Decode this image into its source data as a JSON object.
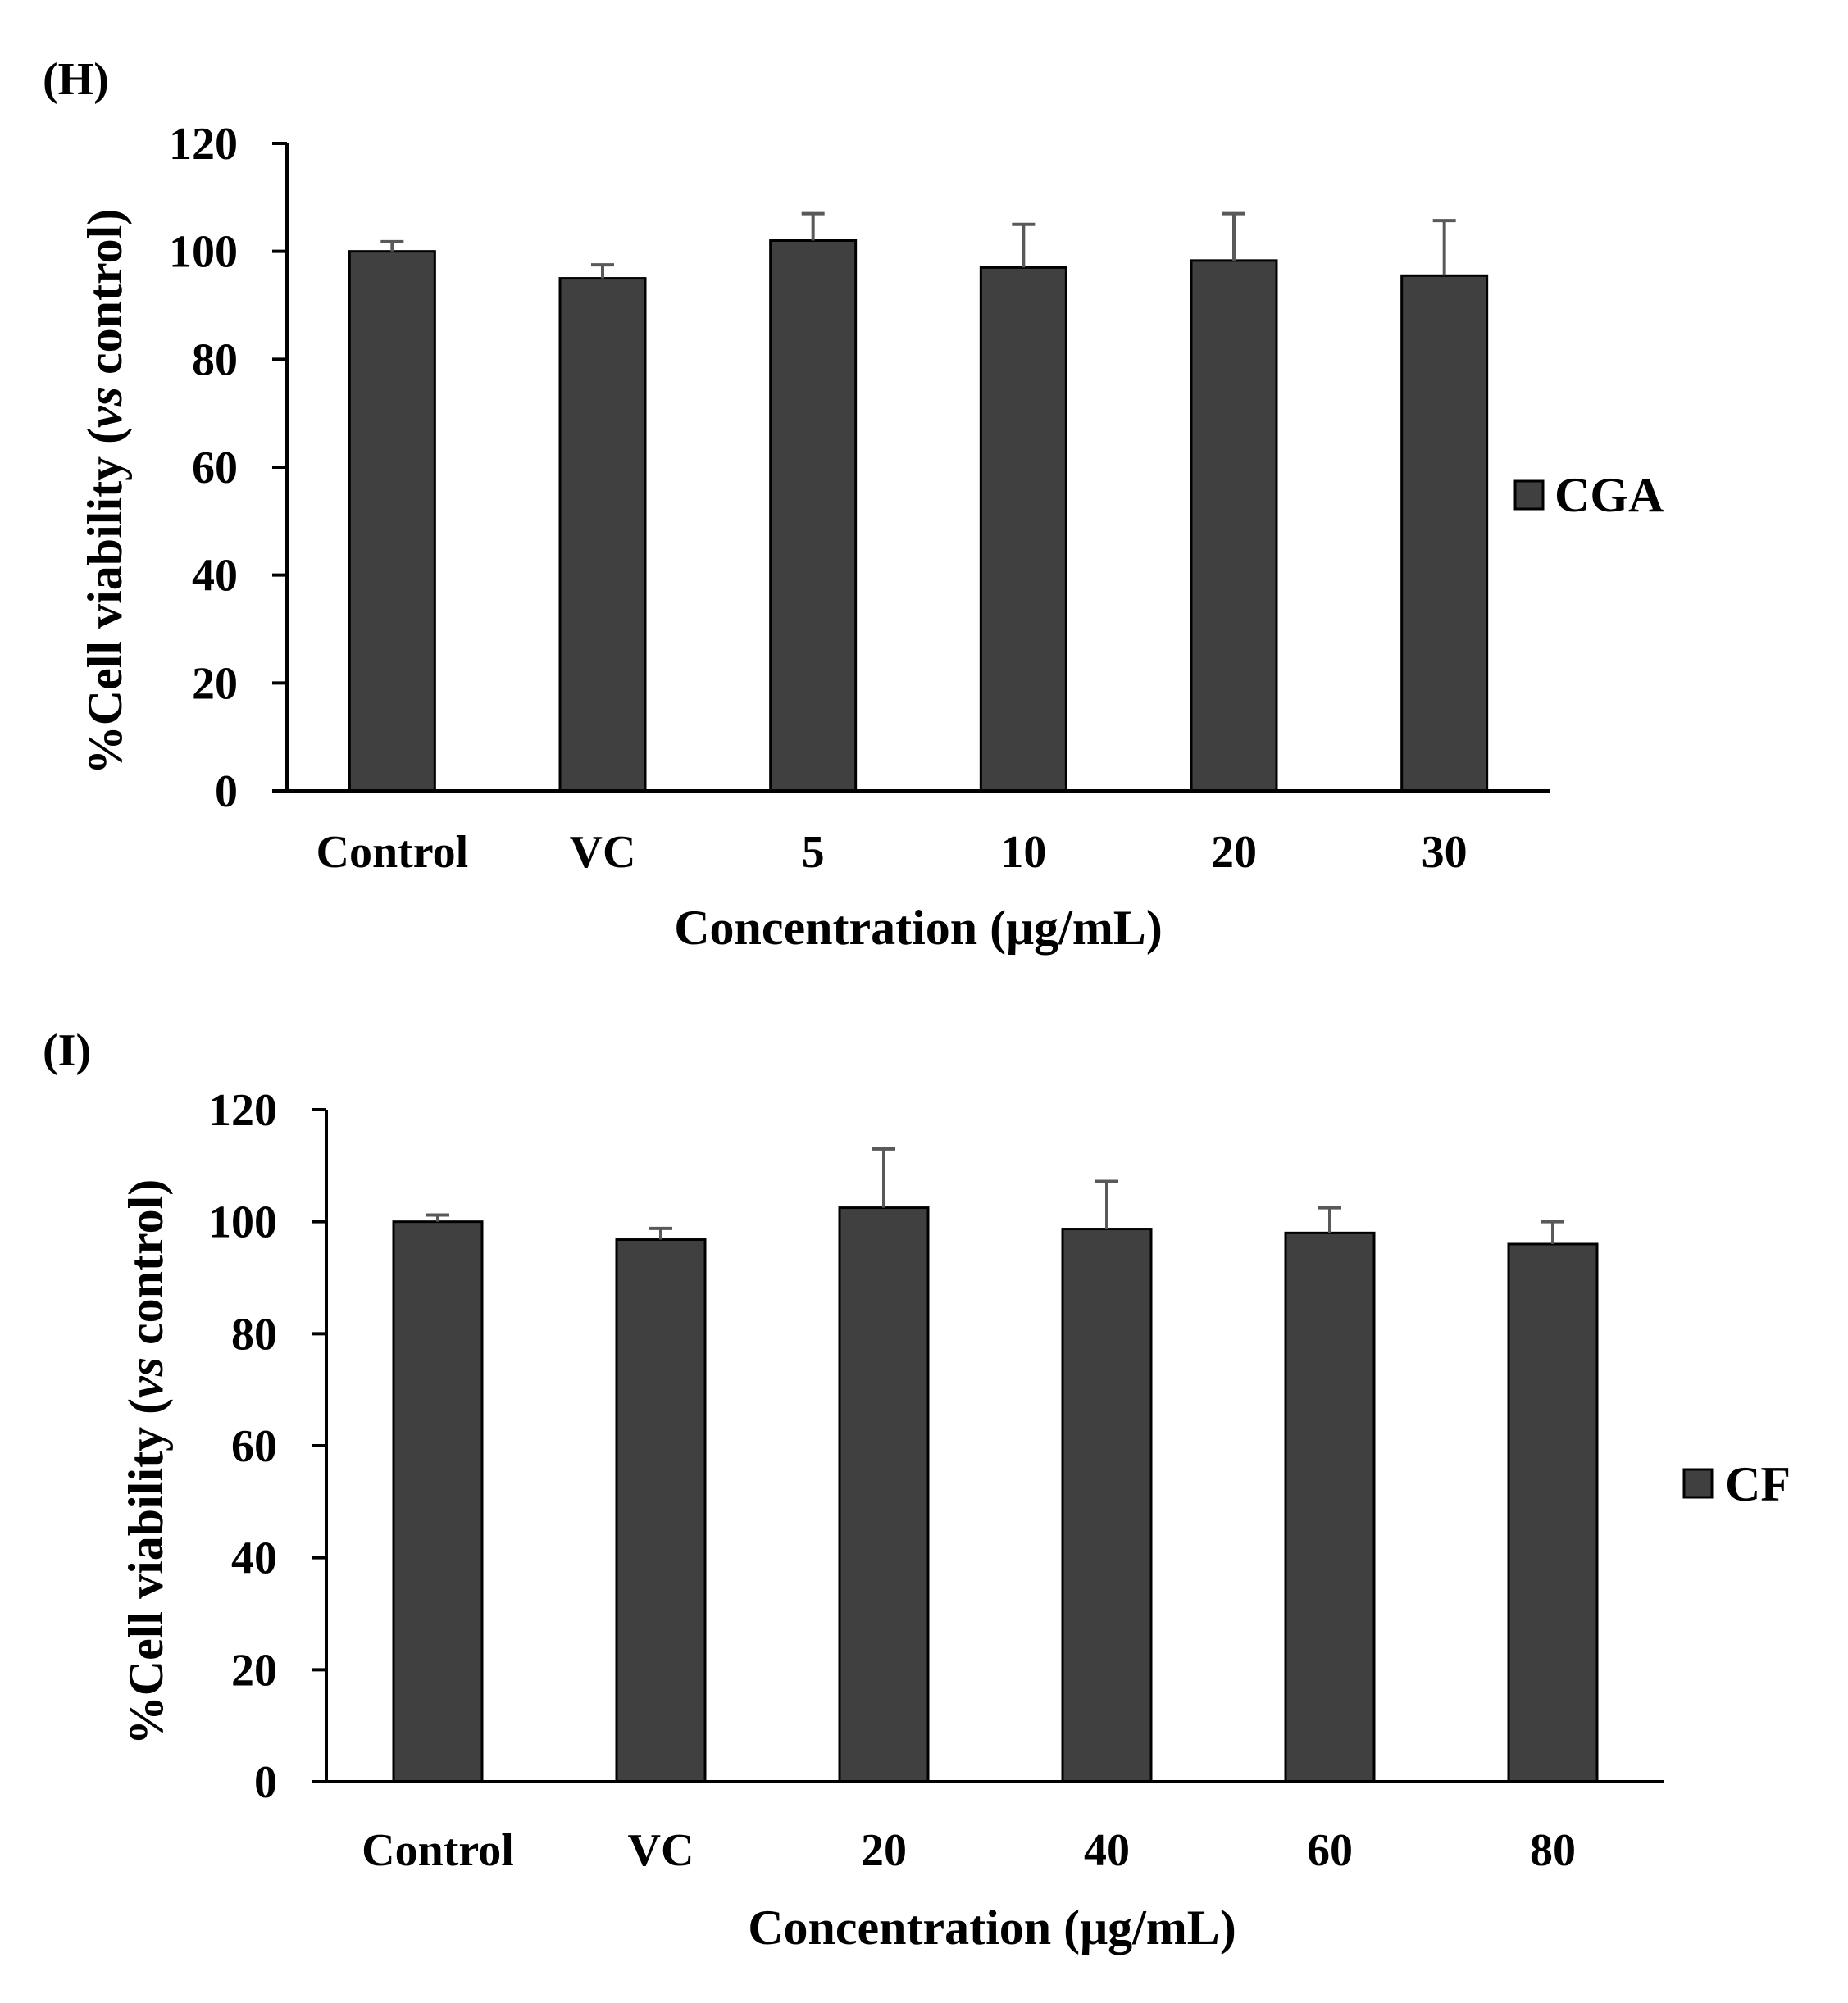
{
  "chart_data": [
    {
      "panel_label": "(H)",
      "type": "bar",
      "categories": [
        "Control",
        "VC",
        "5",
        "10",
        "20",
        "30"
      ],
      "series": [
        {
          "name": "CGA",
          "values": [
            100,
            95,
            102,
            97,
            98.3,
            95.5
          ],
          "errors": [
            1.8,
            2.5,
            5,
            8,
            8.7,
            10.2
          ]
        }
      ],
      "ylabel_prefix": "%Cell viability  (",
      "ylabel_italic": "vs",
      "ylabel_suffix": " control)",
      "xlabel": "Concentration  (μg/mL)",
      "ylim": [
        0,
        120
      ],
      "yticks": [
        0,
        20,
        40,
        60,
        80,
        100,
        120
      ],
      "bar_color": "#404040",
      "error_color": "#595959",
      "legend_position": "right"
    },
    {
      "panel_label": "(I)",
      "type": "bar",
      "categories": [
        "Control",
        "VC",
        "20",
        "40",
        "60",
        "80"
      ],
      "series": [
        {
          "name": "CF",
          "values": [
            100,
            96.8,
            102.5,
            98.7,
            98,
            96
          ],
          "errors": [
            1.2,
            2,
            10.5,
            8.5,
            4.5,
            4
          ]
        }
      ],
      "ylabel_prefix": "%Cell viability  (",
      "ylabel_italic": "vs",
      "ylabel_suffix": " control)",
      "xlabel": "Concentration  (μg/mL)",
      "ylim": [
        0,
        120
      ],
      "yticks": [
        0,
        20,
        40,
        60,
        80,
        100,
        120
      ],
      "bar_color": "#404040",
      "error_color": "#595959",
      "legend_position": "right"
    }
  ]
}
